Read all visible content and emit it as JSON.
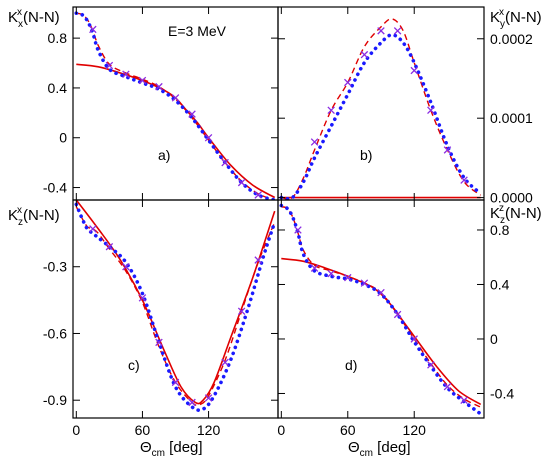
{
  "chart_data": [
    {
      "id": "a",
      "type": "line",
      "panel_label": "a)",
      "annotation": "E=3 MeV",
      "ylabel_main": "K",
      "ylabel_sub": "x",
      "ylabel_sup": "x",
      "ylabel_rest": "(N-N)",
      "xlim": [
        -3,
        183
      ],
      "ylim": [
        -0.5,
        1.05
      ],
      "yticks": [
        -0.4,
        0,
        0.4,
        0.8
      ],
      "yticklabels": [
        "-0.4",
        "0",
        "0.4",
        "0.8"
      ],
      "xticks": [
        0,
        60,
        120
      ],
      "xticklabels": [],
      "series": [
        {
          "style": "solid",
          "x": [
            0,
            20,
            40,
            60,
            80,
            90,
            100,
            110,
            120,
            140,
            160,
            180
          ],
          "y": [
            0.59,
            0.57,
            0.52,
            0.46,
            0.38,
            0.32,
            0.22,
            0.12,
            0.0,
            -0.22,
            -0.38,
            -0.48
          ]
        },
        {
          "style": "dashed",
          "x": [
            0,
            5,
            10,
            15,
            20,
            30,
            45,
            60,
            75,
            90,
            105,
            120,
            135,
            150,
            165,
            180
          ],
          "y": [
            1.0,
            0.99,
            0.95,
            0.86,
            0.74,
            0.59,
            0.52,
            0.47,
            0.41,
            0.31,
            0.16,
            -0.02,
            -0.2,
            -0.35,
            -0.45,
            -0.5
          ]
        },
        {
          "style": "dotted",
          "x": [
            0,
            5,
            10,
            15,
            20,
            30,
            45,
            60,
            75,
            90,
            105,
            120,
            135,
            150,
            165,
            180
          ],
          "y": [
            1.0,
            0.99,
            0.94,
            0.84,
            0.7,
            0.55,
            0.49,
            0.44,
            0.39,
            0.3,
            0.16,
            -0.02,
            -0.2,
            -0.36,
            -0.46,
            -0.5
          ]
        }
      ],
      "markers": {
        "x": [
          15,
          30,
          45,
          60,
          75,
          90,
          105,
          120,
          135,
          150,
          165
        ],
        "y": [
          0.87,
          0.58,
          0.51,
          0.46,
          0.41,
          0.32,
          0.19,
          0.0,
          -0.2,
          -0.36,
          -0.46
        ]
      }
    },
    {
      "id": "b",
      "type": "line",
      "panel_label": "b)",
      "annotation": "",
      "ylabel_main": "K",
      "ylabel_sub": "y",
      "ylabel_sup": "x",
      "ylabel_rest": "(N-N)",
      "ylabel_side": "right",
      "xlim": [
        -3,
        183
      ],
      "ylim": [
        -3e-06,
        0.00024
      ],
      "yticks": [
        0.0,
        0.0001,
        0.0002
      ],
      "yticklabels": [
        "0.0000",
        "0.0001",
        "0.0002"
      ],
      "xticks": [
        0,
        60,
        120
      ],
      "xticklabels": [],
      "series": [
        {
          "style": "solid",
          "x": [
            0,
            180
          ],
          "y": [
            0.0,
            0.0
          ]
        },
        {
          "style": "dashed",
          "x": [
            0,
            10,
            20,
            30,
            45,
            60,
            75,
            90,
            100,
            110,
            120,
            135,
            150,
            165,
            180
          ],
          "y": [
            0.0,
            0.0,
            2.5e-05,
            6e-05,
            0.00011,
            0.000145,
            0.00019,
            0.000215,
            0.000225,
            0.00021,
            0.00017,
            0.00011,
            6e-05,
            2e-05,
            3e-06
          ]
        },
        {
          "style": "dotted",
          "x": [
            0,
            10,
            20,
            30,
            45,
            60,
            75,
            90,
            100,
            110,
            120,
            135,
            150,
            165,
            180
          ],
          "y": [
            0.0,
            0.0,
            2e-05,
            5e-05,
            9e-05,
            0.00013,
            0.00017,
            0.000195,
            0.000205,
            0.000195,
            0.00017,
            0.00012,
            6.5e-05,
            2.5e-05,
            5e-06
          ]
        }
      ],
      "markers": {
        "x": [
          30,
          45,
          60,
          75,
          90,
          105,
          120,
          135,
          150,
          165
        ],
        "y": [
          7e-05,
          0.00011,
          0.000145,
          0.00018,
          0.00021,
          0.00021,
          0.00016,
          0.00011,
          6e-05,
          2.2e-05
        ]
      }
    },
    {
      "id": "c",
      "type": "line",
      "panel_label": "c)",
      "annotation": "",
      "ylabel_main": "K",
      "ylabel_sub": "z",
      "ylabel_sup": "x",
      "ylabel_rest": "(N-N)",
      "xlim": [
        -3,
        183
      ],
      "ylim": [
        -0.98,
        0.0
      ],
      "yticks": [
        -0.9,
        -0.6,
        -0.3
      ],
      "yticklabels": [
        "-0.9",
        "-0.6",
        "-0.3"
      ],
      "xticks": [
        0,
        60,
        120
      ],
      "xticklabels": [
        "0",
        "60",
        "120"
      ],
      "series": [
        {
          "style": "solid",
          "x": [
            0,
            20,
            40,
            60,
            80,
            95,
            108,
            115,
            125,
            140,
            160,
            180
          ],
          "y": [
            0.0,
            -0.13,
            -0.27,
            -0.45,
            -0.68,
            -0.84,
            -0.91,
            -0.9,
            -0.82,
            -0.62,
            -0.35,
            -0.05
          ]
        },
        {
          "style": "dashed",
          "x": [
            0,
            5,
            10,
            15,
            20,
            30,
            45,
            60,
            75,
            90,
            105,
            112,
            120,
            135,
            150,
            165,
            180
          ],
          "y": [
            -0.03,
            -0.08,
            -0.12,
            -0.13,
            -0.15,
            -0.22,
            -0.32,
            -0.46,
            -0.66,
            -0.82,
            -0.91,
            -0.92,
            -0.88,
            -0.72,
            -0.5,
            -0.28,
            -0.1
          ]
        },
        {
          "style": "dotted",
          "x": [
            0,
            5,
            10,
            15,
            20,
            30,
            45,
            60,
            75,
            90,
            105,
            115,
            125,
            140,
            155,
            170,
            180
          ],
          "y": [
            -0.02,
            -0.08,
            -0.13,
            -0.15,
            -0.17,
            -0.21,
            -0.28,
            -0.42,
            -0.64,
            -0.84,
            -0.93,
            -0.94,
            -0.88,
            -0.72,
            -0.5,
            -0.25,
            -0.1
          ]
        }
      ],
      "markers": {
        "x": [
          15,
          30,
          45,
          60,
          75,
          90,
          105,
          120,
          135,
          150,
          165
        ],
        "y": [
          -0.13,
          -0.21,
          -0.3,
          -0.44,
          -0.64,
          -0.82,
          -0.91,
          -0.89,
          -0.73,
          -0.5,
          -0.27
        ]
      }
    },
    {
      "id": "d",
      "type": "line",
      "panel_label": "d)",
      "annotation": "",
      "ylabel_main": "K",
      "ylabel_sub": "z",
      "ylabel_sup": "z",
      "ylabel_rest": "(N-N)",
      "ylabel_side": "right",
      "xlim": [
        -3,
        183
      ],
      "ylim": [
        -0.58,
        1.02
      ],
      "yticks": [
        -0.4,
        0,
        0.4,
        0.8
      ],
      "yticklabels": [
        "-0.4",
        "0",
        "0.4",
        "0.8"
      ],
      "xticks": [
        0,
        60,
        120
      ],
      "xticklabels": [
        "0",
        "60",
        "120"
      ],
      "series": [
        {
          "style": "solid",
          "x": [
            0,
            20,
            40,
            60,
            80,
            90,
            100,
            110,
            120,
            140,
            160,
            180
          ],
          "y": [
            0.59,
            0.57,
            0.52,
            0.46,
            0.39,
            0.33,
            0.24,
            0.13,
            0.02,
            -0.2,
            -0.38,
            -0.48
          ]
        },
        {
          "style": "dashed",
          "x": [
            0,
            5,
            10,
            15,
            20,
            30,
            45,
            60,
            75,
            90,
            105,
            120,
            135,
            150,
            165,
            180
          ],
          "y": [
            0.97,
            0.96,
            0.9,
            0.78,
            0.65,
            0.54,
            0.5,
            0.46,
            0.41,
            0.34,
            0.18,
            0.0,
            -0.18,
            -0.34,
            -0.44,
            -0.5
          ]
        },
        {
          "style": "dotted",
          "x": [
            0,
            5,
            10,
            15,
            20,
            30,
            45,
            60,
            75,
            90,
            105,
            120,
            135,
            150,
            165,
            180
          ],
          "y": [
            0.98,
            0.96,
            0.9,
            0.78,
            0.62,
            0.5,
            0.46,
            0.44,
            0.4,
            0.33,
            0.18,
            -0.02,
            -0.2,
            -0.36,
            -0.46,
            -0.55
          ]
        }
      ],
      "markers": {
        "x": [
          15,
          30,
          45,
          60,
          75,
          90,
          105,
          120,
          135,
          150,
          165
        ],
        "y": [
          0.8,
          0.52,
          0.48,
          0.45,
          0.41,
          0.34,
          0.18,
          0.0,
          -0.19,
          -0.35,
          -0.45
        ]
      }
    }
  ],
  "xaxis_label": {
    "main": "Θ",
    "sub": "cm",
    "rest": " [deg]"
  },
  "colors": {
    "theory": "#e00000",
    "dotted": "#1a1aff",
    "markers": "#8a2be2",
    "axes": "#000000"
  }
}
